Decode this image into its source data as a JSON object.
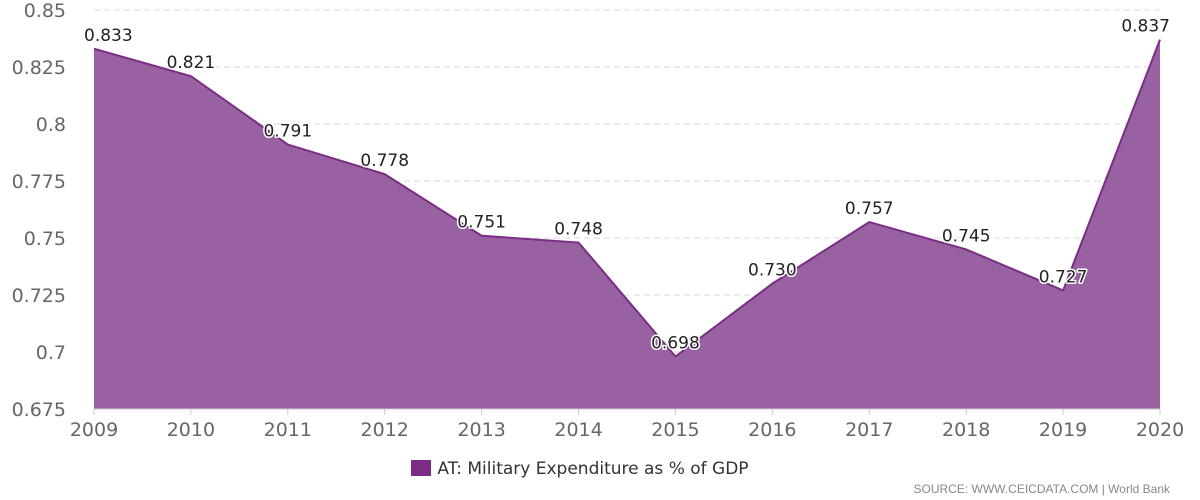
{
  "colors": {
    "series": "#7b2d85",
    "fill": "#9761a2",
    "grid": "#d9d9d9"
  },
  "chart_data": {
    "type": "area",
    "x": [
      "2009",
      "2010",
      "2011",
      "2012",
      "2013",
      "2014",
      "2015",
      "2016",
      "2017",
      "2018",
      "2019",
      "2020"
    ],
    "series": [
      {
        "name": "AT: Military Expenditure as % of GDP",
        "values": [
          0.833,
          0.821,
          0.791,
          0.778,
          0.751,
          0.748,
          0.698,
          0.73,
          0.757,
          0.745,
          0.727,
          0.837
        ],
        "labels": [
          "0.833",
          "0.821",
          "0.791",
          "0.778",
          "0.751",
          "0.748",
          "0.698",
          "0.730",
          "0.757",
          "0.745",
          "0.727",
          "0.837"
        ]
      }
    ],
    "ylim": [
      0.675,
      0.85
    ],
    "yticks": [
      0.675,
      0.7,
      0.725,
      0.75,
      0.775,
      0.8,
      0.825,
      0.85
    ],
    "ytick_labels": [
      "0.675",
      "0.7",
      "0.725",
      "0.75",
      "0.775",
      "0.8",
      "0.825",
      "0.85"
    ],
    "grid": true,
    "legend_position": "bottom-center"
  },
  "legend": {
    "label": "AT: Military Expenditure as % of GDP"
  },
  "source": {
    "text": "SOURCE: WWW.CEICDATA.COM | World Bank"
  }
}
